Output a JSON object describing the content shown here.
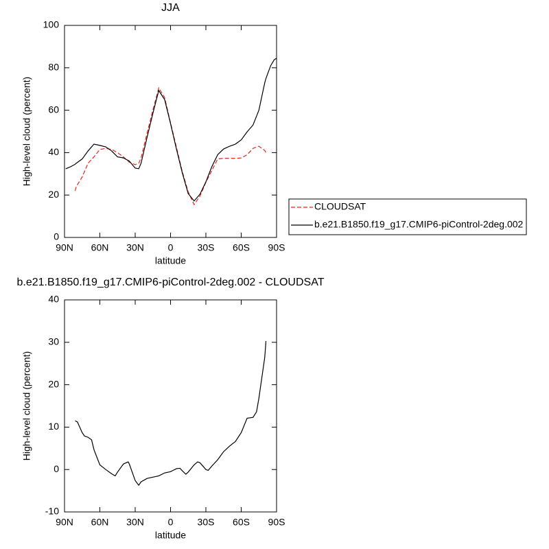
{
  "chart_data": [
    {
      "type": "line",
      "title": "JJA",
      "x_label": "latitude",
      "y_label": "High-level cloud (percent)",
      "xlim": [
        90,
        -90
      ],
      "ylim": [
        0,
        100
      ],
      "xticks": [
        {
          "value": 90,
          "label": "90N"
        },
        {
          "value": 60,
          "label": "60N"
        },
        {
          "value": 30,
          "label": "30N"
        },
        0,
        {
          "value": -30,
          "label": "30S"
        },
        {
          "value": -60,
          "label": "60S"
        },
        {
          "value": -90,
          "label": "90S"
        }
      ],
      "yticks": [
        0,
        20,
        40,
        60,
        80,
        100
      ],
      "legend": "right",
      "x": [
        89,
        85,
        81,
        80,
        75,
        70,
        65,
        60,
        55,
        50,
        45,
        40,
        35,
        30,
        27,
        25,
        20,
        15,
        10,
        5,
        0,
        -5,
        -10,
        -15,
        -20,
        -25,
        -30,
        -35,
        -40,
        -45,
        -50,
        -55,
        -60,
        -65,
        -70,
        -75,
        -80,
        -81,
        -85,
        -88,
        -90
      ],
      "series": [
        {
          "name": "CLOUDSAT",
          "color": "#e8231c",
          "line_style": "dashed",
          "values": [
            null,
            null,
            22,
            24,
            28.5,
            35,
            38,
            41.5,
            42,
            41.5,
            40,
            38,
            35.5,
            34.3,
            35,
            37.5,
            49,
            60,
            70.5,
            66,
            54,
            42.5,
            31,
            21.5,
            15.5,
            19.5,
            26,
            31.5,
            37,
            37.3,
            37.3,
            37.3,
            37.5,
            39,
            42,
            43,
            41,
            40,
            null,
            null,
            null
          ]
        },
        {
          "name": "b.e21.B1850.f19_g17.CMIP6-piControl-2deg.002",
          "color": "#000000",
          "line_style": "solid",
          "values": [
            32.4,
            33.3,
            34.5,
            35,
            37,
            40.8,
            44,
            43.4,
            42.7,
            40.8,
            38,
            37.5,
            36,
            32.7,
            32.4,
            35,
            47,
            58.5,
            69.3,
            65,
            53.7,
            41.7,
            30.4,
            20.7,
            17.2,
            20.4,
            26.2,
            33.3,
            39,
            41.7,
            43,
            44,
            46,
            49.8,
            53,
            60,
            73,
            75,
            81,
            83.8,
            84.5
          ]
        }
      ]
    },
    {
      "type": "line",
      "title": "b.e21.B1850.f19_g17.CMIP6-piControl-2deg.002 - CLOUDSAT",
      "x_label": "latitude",
      "y_label": "High-level cloud (percent)",
      "xlim": [
        90,
        -90
      ],
      "ylim": [
        -10,
        40
      ],
      "xticks": [
        {
          "value": 90,
          "label": "90N"
        },
        {
          "value": 60,
          "label": "60N"
        },
        {
          "value": 30,
          "label": "30N"
        },
        0,
        {
          "value": -30,
          "label": "30S"
        },
        {
          "value": -60,
          "label": "60S"
        },
        {
          "value": -90,
          "label": "90S"
        }
      ],
      "yticks": [
        -10,
        0,
        10,
        20,
        30,
        40
      ],
      "x": [
        81,
        79,
        75,
        73,
        70,
        67,
        65,
        60,
        55,
        50,
        47,
        45,
        40,
        36,
        35,
        30,
        27,
        25,
        20,
        15,
        10,
        5,
        0,
        -5,
        -8,
        -10,
        -13,
        -15,
        -20,
        -23,
        -25,
        -30,
        -32,
        -35,
        -40,
        -45,
        -50,
        -55,
        -60,
        -65,
        -70,
        -73,
        -75,
        -80,
        -81
      ],
      "series": [
        {
          "color": "#000000",
          "line_style": "solid",
          "values": [
            11.5,
            11.2,
            8.7,
            7.9,
            7.6,
            7,
            4.7,
            1.1,
            0,
            -1,
            -1.5,
            -0.6,
            1.3,
            1.8,
            1.3,
            -2.6,
            -3.7,
            -2.9,
            -2.1,
            -1.8,
            -1.5,
            -0.8,
            -0.5,
            0.2,
            0.3,
            -0.3,
            -1.1,
            -0.6,
            1.1,
            1.8,
            1.6,
            0,
            -0.2,
            0.8,
            2.3,
            4.2,
            5.5,
            6.6,
            8.7,
            12.1,
            12.3,
            13.6,
            16.8,
            26.5,
            30.3
          ]
        }
      ]
    }
  ]
}
